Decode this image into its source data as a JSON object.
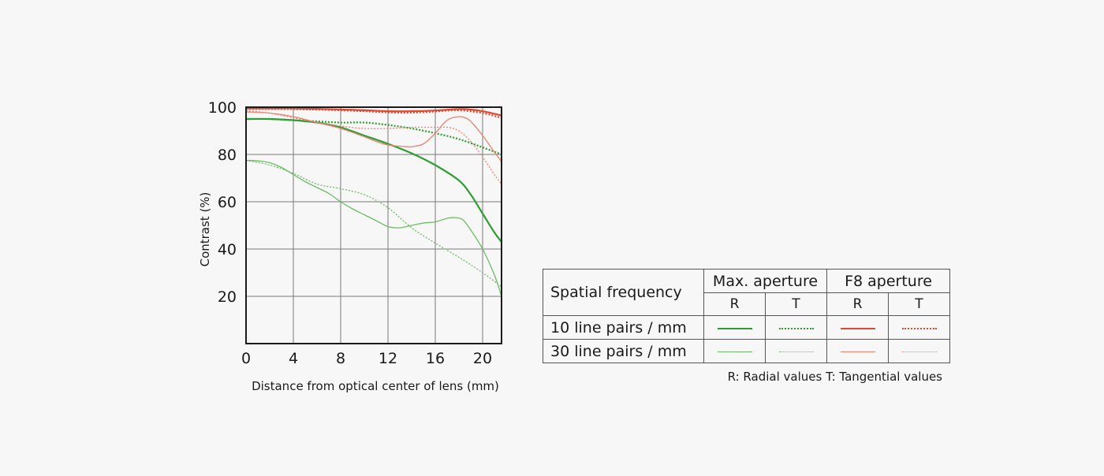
{
  "chart_data": {
    "type": "line",
    "ylabel": "Contrast (%)",
    "xlabel": "Distance from optical center of lens (mm)",
    "xlim": [
      0,
      21.6
    ],
    "ylim": [
      0,
      100
    ],
    "xticks": [
      0,
      4,
      8,
      12,
      16,
      20
    ],
    "yticks": [
      20,
      40,
      60,
      80,
      100
    ],
    "grid": true,
    "series": [
      {
        "group": "10 line pairs / mm",
        "aperture": "Max. aperture",
        "orientation": "R",
        "color": "#2f9e32",
        "width": 2.2,
        "dash": "solid",
        "x": [
          0,
          2,
          4,
          6,
          8,
          10,
          12,
          14,
          16,
          18,
          19,
          20,
          21,
          21.6
        ],
        "y": [
          95,
          95,
          94.5,
          93.5,
          91.5,
          88,
          84.5,
          80.5,
          75.5,
          69,
          63,
          55,
          47,
          43
        ]
      },
      {
        "group": "10 line pairs / mm",
        "aperture": "Max. aperture",
        "orientation": "T",
        "color": "#2f9e32",
        "width": 2.2,
        "dash": "2,2",
        "x": [
          0,
          2,
          4,
          6,
          8,
          10,
          12,
          14,
          16,
          18,
          20,
          21.6
        ],
        "y": [
          95,
          95,
          94.5,
          94,
          93.5,
          93.5,
          92.5,
          91,
          89,
          86.5,
          83,
          80
        ]
      },
      {
        "group": "10 line pairs / mm",
        "aperture": "F8 aperture",
        "orientation": "R",
        "color": "#e04a33",
        "width": 2.2,
        "dash": "solid",
        "x": [
          0,
          2,
          4,
          6,
          8,
          10,
          12,
          14,
          16,
          18,
          19,
          20,
          21,
          21.6
        ],
        "y": [
          99.5,
          99.5,
          99.5,
          99.3,
          99,
          98.7,
          98.3,
          98.3,
          98.6,
          99.2,
          99,
          98.3,
          97.2,
          96.5
        ]
      },
      {
        "group": "10 line pairs / mm",
        "aperture": "F8 aperture",
        "orientation": "T",
        "color": "#e04a33",
        "width": 2.2,
        "dash": "2,2",
        "x": [
          0,
          2,
          4,
          6,
          8,
          10,
          12,
          14,
          16,
          18,
          20,
          21.6
        ],
        "y": [
          99.3,
          99.3,
          99.2,
          99,
          98.7,
          98.3,
          97.8,
          97.7,
          98.2,
          98.7,
          97.5,
          95.5
        ]
      },
      {
        "group": "30 line pairs / mm",
        "aperture": "Max. aperture",
        "orientation": "R",
        "color": "#6dbb64",
        "width": 1.3,
        "dash": "solid",
        "x": [
          0,
          1,
          2,
          3,
          4,
          5,
          6,
          7,
          8,
          9,
          10,
          11,
          12,
          13,
          14,
          15,
          16,
          17,
          17.6,
          18.3,
          19,
          20,
          21,
          21.6
        ],
        "y": [
          77.5,
          77.3,
          76.5,
          74.5,
          71.5,
          68.5,
          66,
          63.5,
          60,
          57,
          54.5,
          52,
          49.5,
          49,
          50,
          51,
          51.5,
          53,
          53.3,
          52.5,
          48,
          40,
          29,
          20
        ]
      },
      {
        "group": "30 line pairs / mm",
        "aperture": "Max. aperture",
        "orientation": "T",
        "color": "#6dbb64",
        "width": 1.3,
        "dash": "2,2",
        "x": [
          0,
          2,
          4,
          6,
          8,
          10,
          12,
          14,
          16,
          18,
          20,
          21.6
        ],
        "y": [
          77.5,
          75.5,
          72,
          67.5,
          65.5,
          63,
          57.5,
          49,
          42.5,
          36.5,
          30,
          24
        ]
      },
      {
        "group": "30 line pairs / mm",
        "aperture": "F8 aperture",
        "orientation": "R",
        "color": "#ee8270",
        "width": 1.3,
        "dash": "solid",
        "x": [
          0,
          2,
          4,
          6,
          8,
          10,
          11,
          12,
          13,
          14,
          15,
          16,
          17,
          18,
          18.5,
          19,
          20,
          21,
          21.6
        ],
        "y": [
          98,
          97.5,
          96,
          93.5,
          91,
          87.5,
          85.5,
          84,
          83.5,
          83.3,
          84.5,
          89,
          94.5,
          96,
          95.5,
          94,
          88,
          81,
          77
        ]
      },
      {
        "group": "30 line pairs / mm",
        "aperture": "F8 aperture",
        "orientation": "T",
        "color": "#ee8270",
        "width": 1.3,
        "dash": "2,2",
        "x": [
          0,
          2,
          4,
          6,
          8,
          10,
          12,
          14,
          16,
          17,
          18,
          19,
          20,
          21,
          21.6
        ],
        "y": [
          98.5,
          97.5,
          95.5,
          93.5,
          92,
          91,
          91,
          91.5,
          91.5,
          91.5,
          90,
          85.5,
          79,
          71.5,
          67.5
        ]
      }
    ]
  },
  "legend": {
    "header_label": "Spatial frequency",
    "groups": [
      "Max. aperture",
      "F8 aperture"
    ],
    "sub_headers": [
      "R",
      "T",
      "R",
      "T"
    ],
    "rows": [
      {
        "label": "10 line pairs / mm",
        "swatches": [
          {
            "color": "#2f9e32",
            "style": "solid",
            "weight": "thick"
          },
          {
            "color": "#2f9e32",
            "style": "dotted",
            "weight": "thick"
          },
          {
            "color": "#e04a33",
            "style": "solid",
            "weight": "thick"
          },
          {
            "color": "#e04a33",
            "style": "dotted",
            "weight": "thick"
          }
        ]
      },
      {
        "label": "30 line pairs / mm",
        "swatches": [
          {
            "color": "#6dbb64",
            "style": "solid",
            "weight": "thin"
          },
          {
            "color": "#6dbb64",
            "style": "dotted",
            "weight": "thin"
          },
          {
            "color": "#ee8270",
            "style": "solid",
            "weight": "thin"
          },
          {
            "color": "#ee8270",
            "style": "dotted",
            "weight": "thin"
          }
        ]
      }
    ],
    "footnote": "R: Radial values  T: Tangential values"
  }
}
